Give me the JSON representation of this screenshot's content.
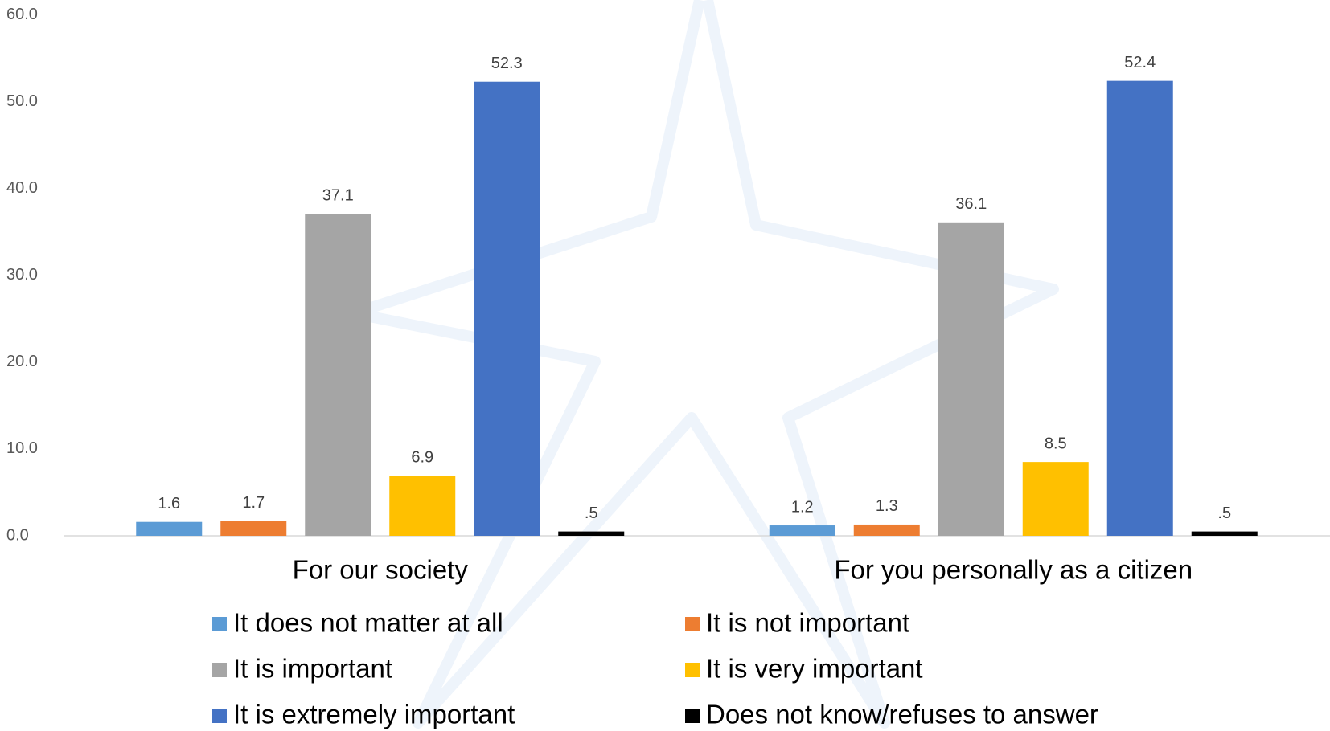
{
  "chart_data": {
    "type": "bar",
    "categories": [
      "For our society",
      "For you personally as a citizen"
    ],
    "series": [
      {
        "name": "It does not matter at all",
        "color": "#5b9bd5",
        "values": [
          1.6,
          1.2
        ]
      },
      {
        "name": "It is not important",
        "color": "#ed7d31",
        "values": [
          1.7,
          1.3
        ]
      },
      {
        "name": "It is important",
        "color": "#a5a5a5",
        "values": [
          37.1,
          36.1
        ]
      },
      {
        "name": "It is very important",
        "color": "#ffc000",
        "values": [
          6.9,
          8.5
        ]
      },
      {
        "name": "It is extremely important",
        "color": "#4472c4",
        "values": [
          52.3,
          52.4
        ]
      },
      {
        "name": "Does not know/refuses to answer",
        "color": "#000000",
        "values": [
          0.5,
          0.5
        ],
        "value_labels": [
          ".5",
          ".5"
        ]
      }
    ],
    "ylim": [
      0,
      60
    ],
    "yticks": [
      {
        "value": 0,
        "label": "0.0"
      },
      {
        "value": 10,
        "label": "10.0"
      },
      {
        "value": 20,
        "label": "20.0"
      },
      {
        "value": 30,
        "label": "30.0"
      },
      {
        "value": 40,
        "label": "40.0"
      },
      {
        "value": 50,
        "label": "50.0"
      },
      {
        "value": 60,
        "label": "60.0"
      }
    ],
    "grid": false,
    "legend": "bottom"
  }
}
